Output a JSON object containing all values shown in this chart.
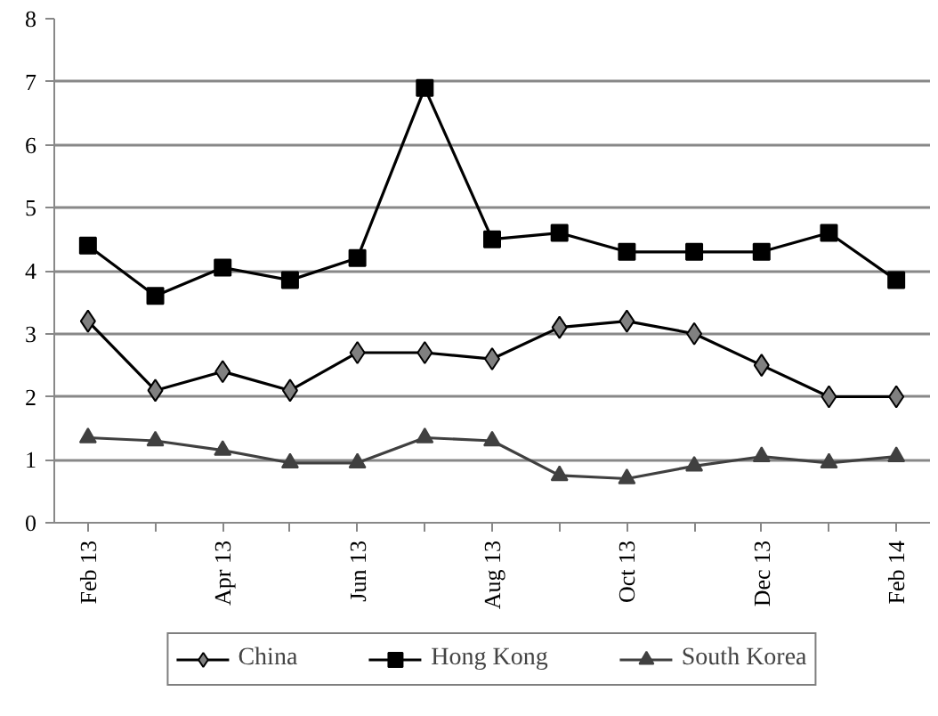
{
  "chart_data": {
    "type": "line",
    "categories": [
      "Feb 13",
      null,
      "Apr 13",
      null,
      "Jun 13",
      null,
      "Aug 13",
      null,
      "Oct 13",
      null,
      "Dec 13",
      null,
      "Feb 14"
    ],
    "ylim": [
      0,
      8
    ],
    "yticks": [
      0,
      1,
      2,
      3,
      4,
      5,
      6,
      7,
      8
    ],
    "grid": "y",
    "legend": "bottom",
    "series": [
      {
        "name": "China",
        "color": "#000000",
        "marker": "diamond",
        "values": [
          3.2,
          2.1,
          2.4,
          2.1,
          2.7,
          2.7,
          2.6,
          3.1,
          3.2,
          3.0,
          2.5,
          2.0,
          2.0
        ]
      },
      {
        "name": "Hong Kong",
        "color": "#000000",
        "marker": "square",
        "values": [
          4.4,
          3.6,
          4.05,
          3.85,
          4.2,
          6.9,
          4.5,
          4.6,
          4.3,
          4.3,
          4.3,
          4.6,
          3.85
        ]
      },
      {
        "name": "South Korea",
        "color": "#404040",
        "marker": "triangle",
        "values": [
          1.35,
          1.3,
          1.15,
          0.95,
          0.95,
          1.35,
          1.3,
          0.75,
          0.7,
          0.9,
          1.05,
          0.95,
          1.05
        ]
      }
    ]
  }
}
